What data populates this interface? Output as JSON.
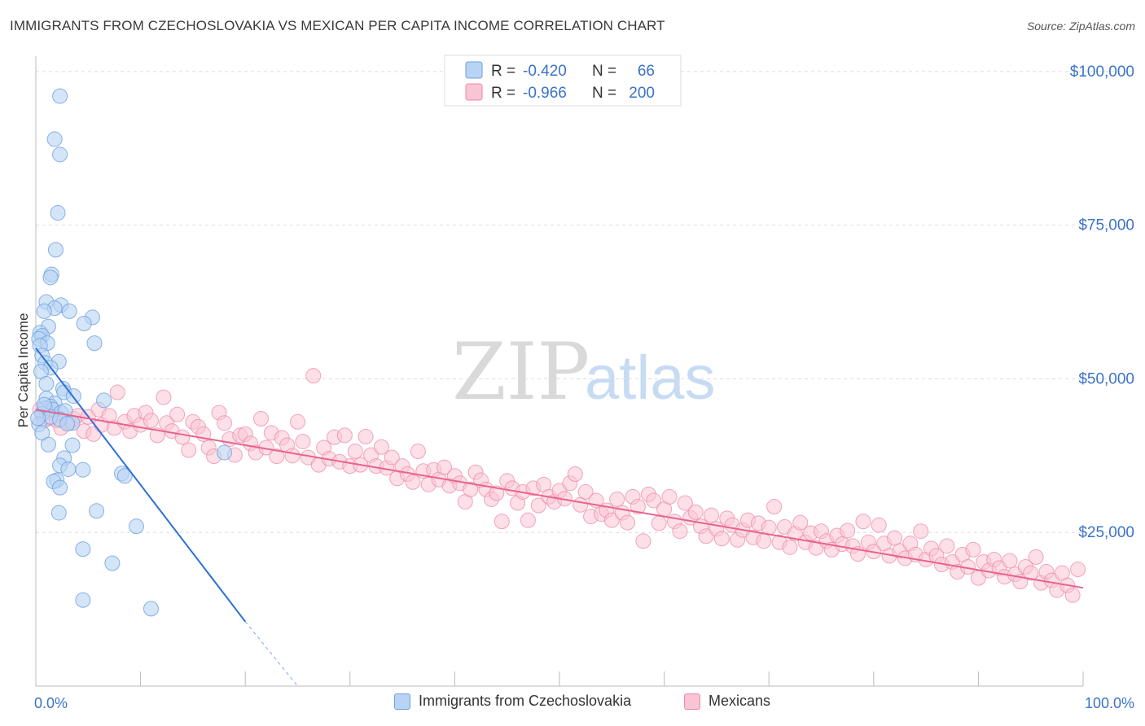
{
  "title": "IMMIGRANTS FROM CZECHOSLOVAKIA VS MEXICAN PER CAPITA INCOME CORRELATION CHART",
  "source": "Source: ZipAtlas.com",
  "watermark": {
    "zip": "ZIP",
    "atlas": "atlas"
  },
  "legend_top": {
    "rows": [
      {
        "r_label": "R =",
        "r_value": "-0.420",
        "n_label": "N =",
        "n_value": "66"
      },
      {
        "r_label": "R =",
        "r_value": "-0.966",
        "n_label": "N =",
        "n_value": "200"
      }
    ]
  },
  "colors": {
    "blue_fill": "#b8d3f4",
    "blue_stroke": "#6b9fe0",
    "blue_line": "#2e6fd4",
    "pink_fill": "#f9c4d3",
    "pink_stroke": "#ee88a8",
    "pink_line": "#e8628f",
    "value_text": "#3b73c8",
    "grid": "#dddddd"
  },
  "chart_data": {
    "type": "scatter",
    "title": "IMMIGRANTS FROM CZECHOSLOVAKIA VS MEXICAN PER CAPITA INCOME CORRELATION CHART",
    "xlabel": "",
    "ylabel": "Per Capita Income",
    "x_tick_labels": [
      "0.0%",
      "100.0%"
    ],
    "y_tick_labels": [
      "$25,000",
      "$50,000",
      "$75,000",
      "$100,000"
    ],
    "y_ticks": [
      25000,
      50000,
      75000,
      100000
    ],
    "xlim": [
      0,
      100
    ],
    "ylim": [
      0,
      102500
    ],
    "grid": true,
    "legend_position": "top-center",
    "series": [
      {
        "name": "Immigrants from Czechoslovakia",
        "r": -0.42,
        "n": 66,
        "trend": {
          "x0": 0,
          "y0": 55000,
          "x1": 20,
          "y1": 10500,
          "dash_to_x": 25,
          "dash_to_y": -500
        },
        "points": [
          [
            2.3,
            96000
          ],
          [
            1.8,
            89000
          ],
          [
            2.3,
            86500
          ],
          [
            2.1,
            77000
          ],
          [
            1.9,
            71000
          ],
          [
            1.5,
            67000
          ],
          [
            1.4,
            66500
          ],
          [
            1.0,
            62500
          ],
          [
            2.4,
            62000
          ],
          [
            1.8,
            61500
          ],
          [
            0.8,
            61000
          ],
          [
            3.2,
            61000
          ],
          [
            5.4,
            60000
          ],
          [
            4.6,
            59000
          ],
          [
            1.2,
            58500
          ],
          [
            0.4,
            57500
          ],
          [
            0.6,
            57000
          ],
          [
            0.3,
            56500
          ],
          [
            1.1,
            55800
          ],
          [
            5.6,
            55800
          ],
          [
            0.4,
            55400
          ],
          [
            0.6,
            53800
          ],
          [
            2.2,
            52800
          ],
          [
            0.9,
            52600
          ],
          [
            1.4,
            51800
          ],
          [
            0.5,
            51200
          ],
          [
            1.0,
            49200
          ],
          [
            2.6,
            48400
          ],
          [
            2.7,
            47800
          ],
          [
            3.6,
            47200
          ],
          [
            1.0,
            46800
          ],
          [
            6.5,
            46500
          ],
          [
            1.8,
            46000
          ],
          [
            1.4,
            45500
          ],
          [
            0.9,
            45200
          ],
          [
            1.6,
            45000
          ],
          [
            2.4,
            44500
          ],
          [
            2.8,
            44800
          ],
          [
            0.6,
            44300
          ],
          [
            1.4,
            43800
          ],
          [
            2.3,
            43400
          ],
          [
            3.5,
            42800
          ],
          [
            0.3,
            42600
          ],
          [
            0.6,
            41200
          ],
          [
            1.2,
            39300
          ],
          [
            3.5,
            39200
          ],
          [
            18.0,
            38000
          ],
          [
            2.7,
            37100
          ],
          [
            2.3,
            35900
          ],
          [
            3.1,
            35300
          ],
          [
            4.5,
            35200
          ],
          [
            8.2,
            34600
          ],
          [
            8.5,
            34200
          ],
          [
            2.0,
            33500
          ],
          [
            1.7,
            33300
          ],
          [
            2.3,
            32300
          ],
          [
            2.2,
            28200
          ],
          [
            5.8,
            28500
          ],
          [
            9.6,
            26000
          ],
          [
            4.5,
            22300
          ],
          [
            7.3,
            20000
          ],
          [
            4.5,
            14000
          ],
          [
            11.0,
            12600
          ],
          [
            0.2,
            43600
          ],
          [
            0.8,
            45800
          ],
          [
            3.0,
            42700
          ]
        ]
      },
      {
        "name": "Mexicans",
        "r": -0.966,
        "n": 200,
        "trend": {
          "x0": 0,
          "y0": 45000,
          "x1": 100,
          "y1": 16000
        },
        "points": [
          [
            0.4,
            45000
          ],
          [
            0.8,
            43200
          ],
          [
            1.3,
            43600
          ],
          [
            1.6,
            44500
          ],
          [
            2.0,
            43200
          ],
          [
            2.4,
            42000
          ],
          [
            3.2,
            42800
          ],
          [
            3.6,
            43500
          ],
          [
            4.0,
            44000
          ],
          [
            4.6,
            41500
          ],
          [
            5.0,
            43800
          ],
          [
            5.5,
            41000
          ],
          [
            6.0,
            45000
          ],
          [
            6.3,
            42500
          ],
          [
            7.0,
            44000
          ],
          [
            7.5,
            42000
          ],
          [
            7.8,
            47800
          ],
          [
            8.5,
            43000
          ],
          [
            9.0,
            41500
          ],
          [
            9.4,
            44000
          ],
          [
            10.0,
            42500
          ],
          [
            10.5,
            44500
          ],
          [
            11.0,
            43200
          ],
          [
            11.6,
            40800
          ],
          [
            12.2,
            47000
          ],
          [
            12.5,
            42800
          ],
          [
            13.0,
            41500
          ],
          [
            13.5,
            44200
          ],
          [
            14.0,
            40500
          ],
          [
            14.6,
            38400
          ],
          [
            15.0,
            43000
          ],
          [
            15.5,
            42200
          ],
          [
            16.0,
            41000
          ],
          [
            16.5,
            38800
          ],
          [
            17.0,
            37400
          ],
          [
            17.5,
            44500
          ],
          [
            18.0,
            42800
          ],
          [
            18.5,
            40200
          ],
          [
            19.0,
            37600
          ],
          [
            19.5,
            40800
          ],
          [
            20.0,
            41000
          ],
          [
            20.5,
            39500
          ],
          [
            21.0,
            38000
          ],
          [
            21.5,
            43500
          ],
          [
            22.0,
            38800
          ],
          [
            22.5,
            41200
          ],
          [
            23.0,
            37400
          ],
          [
            23.5,
            40400
          ],
          [
            24.0,
            39200
          ],
          [
            24.5,
            37500
          ],
          [
            25.0,
            43000
          ],
          [
            25.5,
            39800
          ],
          [
            26.0,
            37200
          ],
          [
            26.5,
            50500
          ],
          [
            27.0,
            36000
          ],
          [
            27.5,
            38800
          ],
          [
            28.0,
            37000
          ],
          [
            28.5,
            40500
          ],
          [
            29.0,
            36500
          ],
          [
            29.5,
            40800
          ],
          [
            30.0,
            35800
          ],
          [
            30.5,
            38200
          ],
          [
            31.0,
            36000
          ],
          [
            31.5,
            40600
          ],
          [
            32.0,
            37600
          ],
          [
            32.5,
            35800
          ],
          [
            33.0,
            38900
          ],
          [
            33.5,
            35500
          ],
          [
            34.0,
            37200
          ],
          [
            34.5,
            33800
          ],
          [
            35.0,
            35800
          ],
          [
            35.5,
            34500
          ],
          [
            36.0,
            33200
          ],
          [
            36.5,
            38200
          ],
          [
            37.0,
            35000
          ],
          [
            37.5,
            32800
          ],
          [
            38.0,
            35200
          ],
          [
            38.5,
            33600
          ],
          [
            39.0,
            35600
          ],
          [
            39.5,
            32600
          ],
          [
            40.0,
            34200
          ],
          [
            40.5,
            33000
          ],
          [
            41.0,
            30000
          ],
          [
            41.5,
            32000
          ],
          [
            42.0,
            34800
          ],
          [
            42.5,
            33500
          ],
          [
            43.0,
            32000
          ],
          [
            43.5,
            30400
          ],
          [
            44.0,
            31400
          ],
          [
            44.5,
            26800
          ],
          [
            45.0,
            33400
          ],
          [
            45.5,
            32200
          ],
          [
            46.0,
            29800
          ],
          [
            46.5,
            31600
          ],
          [
            47.0,
            27000
          ],
          [
            47.5,
            32200
          ],
          [
            48.0,
            29400
          ],
          [
            48.5,
            32800
          ],
          [
            49.0,
            30800
          ],
          [
            49.5,
            30000
          ],
          [
            50.0,
            31800
          ],
          [
            50.5,
            30500
          ],
          [
            51.0,
            33000
          ],
          [
            51.5,
            34500
          ],
          [
            52.0,
            29500
          ],
          [
            52.5,
            31600
          ],
          [
            53.0,
            27600
          ],
          [
            53.5,
            30200
          ],
          [
            54.0,
            28000
          ],
          [
            54.5,
            28600
          ],
          [
            55.0,
            27000
          ],
          [
            55.5,
            30400
          ],
          [
            56.0,
            28200
          ],
          [
            56.5,
            26600
          ],
          [
            57.0,
            30800
          ],
          [
            57.5,
            29200
          ],
          [
            58.0,
            23600
          ],
          [
            58.5,
            31200
          ],
          [
            59.0,
            30200
          ],
          [
            59.5,
            26500
          ],
          [
            60.0,
            28800
          ],
          [
            60.5,
            30800
          ],
          [
            61.0,
            26800
          ],
          [
            61.5,
            25200
          ],
          [
            62.0,
            29800
          ],
          [
            62.5,
            27400
          ],
          [
            63.0,
            28300
          ],
          [
            63.5,
            26000
          ],
          [
            64.0,
            24400
          ],
          [
            64.5,
            27800
          ],
          [
            65.0,
            25600
          ],
          [
            65.5,
            24000
          ],
          [
            66.0,
            27300
          ],
          [
            66.5,
            26200
          ],
          [
            67.0,
            23800
          ],
          [
            67.5,
            25400
          ],
          [
            68.0,
            27000
          ],
          [
            68.5,
            24200
          ],
          [
            69.0,
            26500
          ],
          [
            69.5,
            23600
          ],
          [
            70.0,
            25800
          ],
          [
            70.5,
            29200
          ],
          [
            71.0,
            23400
          ],
          [
            71.5,
            25900
          ],
          [
            72.0,
            22600
          ],
          [
            72.5,
            24800
          ],
          [
            73.0,
            26600
          ],
          [
            73.5,
            23400
          ],
          [
            74.0,
            24900
          ],
          [
            74.5,
            22500
          ],
          [
            75.0,
            25200
          ],
          [
            75.5,
            23600
          ],
          [
            76.0,
            22200
          ],
          [
            76.5,
            24500
          ],
          [
            77.0,
            23100
          ],
          [
            77.5,
            25300
          ],
          [
            78.0,
            22800
          ],
          [
            78.5,
            21500
          ],
          [
            79.0,
            26800
          ],
          [
            79.5,
            23400
          ],
          [
            80.0,
            21900
          ],
          [
            80.5,
            26200
          ],
          [
            81.0,
            23200
          ],
          [
            81.5,
            21200
          ],
          [
            82.0,
            24100
          ],
          [
            82.5,
            22000
          ],
          [
            83.0,
            20800
          ],
          [
            83.5,
            23200
          ],
          [
            84.0,
            21400
          ],
          [
            84.5,
            25200
          ],
          [
            85.0,
            20600
          ],
          [
            85.5,
            22400
          ],
          [
            86.0,
            21200
          ],
          [
            86.5,
            19800
          ],
          [
            87.0,
            22800
          ],
          [
            87.5,
            20200
          ],
          [
            88.0,
            18600
          ],
          [
            88.5,
            21400
          ],
          [
            89.0,
            19400
          ],
          [
            89.5,
            22200
          ],
          [
            90.0,
            17600
          ],
          [
            90.5,
            20200
          ],
          [
            91.0,
            18800
          ],
          [
            91.5,
            20600
          ],
          [
            92.0,
            19200
          ],
          [
            92.5,
            17800
          ],
          [
            93.0,
            20400
          ],
          [
            93.5,
            18200
          ],
          [
            94.0,
            17000
          ],
          [
            94.5,
            19400
          ],
          [
            95.0,
            18400
          ],
          [
            95.5,
            21000
          ],
          [
            96.0,
            16800
          ],
          [
            96.5,
            18600
          ],
          [
            97.0,
            17200
          ],
          [
            97.5,
            15600
          ],
          [
            98.0,
            18400
          ],
          [
            98.5,
            16400
          ],
          [
            99.0,
            14800
          ],
          [
            99.5,
            19000
          ]
        ]
      }
    ]
  }
}
